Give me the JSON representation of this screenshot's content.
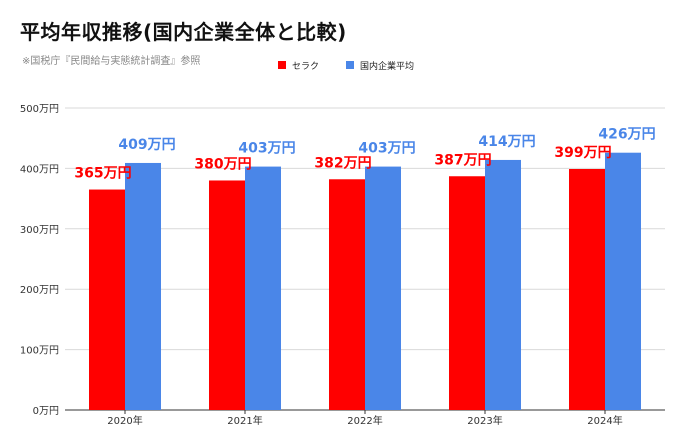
{
  "title": "平均年収推移(国内企業全体と比較)",
  "source_note": "※国税庁『民間給与実態統計調査』参照",
  "colors": {
    "company": "#ff0000",
    "domestic": "#4a86e8",
    "grid": "#d9d9d9",
    "axis": "#333333"
  },
  "chart_data": {
    "type": "bar",
    "categories": [
      "2020年",
      "2021年",
      "2022年",
      "2023年",
      "2024年"
    ],
    "series": [
      {
        "name": "セラク",
        "values": [
          365,
          380,
          382,
          387,
          399
        ],
        "labels": [
          "365万円",
          "380万円",
          "382万円",
          "387万円",
          "399万円"
        ]
      },
      {
        "name": "国内企業平均",
        "values": [
          409,
          403,
          403,
          414,
          426
        ],
        "labels": [
          "409万円",
          "403万円",
          "403万円",
          "414万円",
          "426万円"
        ]
      }
    ],
    "ylim": [
      0,
      500
    ],
    "yticks": [
      0,
      100,
      200,
      300,
      400,
      500
    ],
    "ytick_labels": [
      "0万円",
      "100万円",
      "200万円",
      "300万円",
      "400万円",
      "500万円"
    ],
    "grid": true,
    "legend_position": "top-right"
  }
}
